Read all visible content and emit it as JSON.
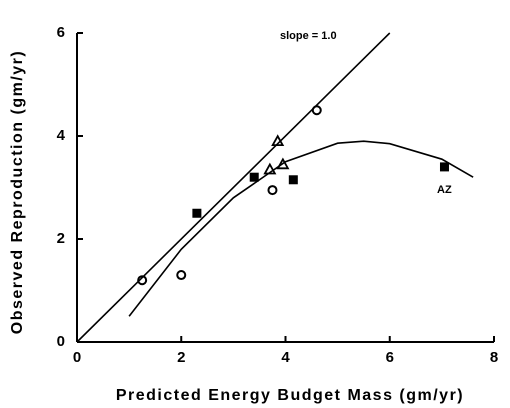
{
  "chart_data": {
    "type": "scatter",
    "xlabel": "Predicted Energy Budget Mass (gm/yr)",
    "ylabel": "Observed Reproduction (gm/yr)",
    "annotations": [
      "slope = 1.0",
      "AZ"
    ],
    "xlim": [
      0,
      8
    ],
    "xticks": [
      0,
      2,
      4,
      6,
      8
    ],
    "ylim": [
      0,
      6
    ],
    "yticks": [
      0,
      2,
      4,
      6
    ],
    "color": "#000000",
    "series": [
      {
        "type": "scatter",
        "marker": "circle",
        "x": [
          1.25,
          2.0,
          3.75,
          4.6
        ],
        "values": [
          1.2,
          1.3,
          2.95,
          4.5
        ]
      },
      {
        "type": "scatter",
        "marker": "triangle",
        "x": [
          3.7,
          3.85,
          3.95
        ],
        "values": [
          3.35,
          3.9,
          3.45
        ]
      },
      {
        "type": "scatter",
        "marker": "square",
        "x": [
          2.3,
          3.4,
          4.15,
          7.05
        ],
        "values": [
          2.5,
          3.2,
          3.15,
          3.4
        ]
      },
      {
        "type": "line",
        "x": [
          0,
          6
        ],
        "values": [
          0,
          6
        ]
      },
      {
        "type": "line",
        "x": [
          1,
          2,
          3,
          4,
          5,
          5.5,
          6,
          7,
          7.6
        ],
        "values": [
          0.5,
          1.8,
          2.8,
          3.5,
          3.86,
          3.9,
          3.85,
          3.55,
          3.2
        ]
      }
    ]
  }
}
